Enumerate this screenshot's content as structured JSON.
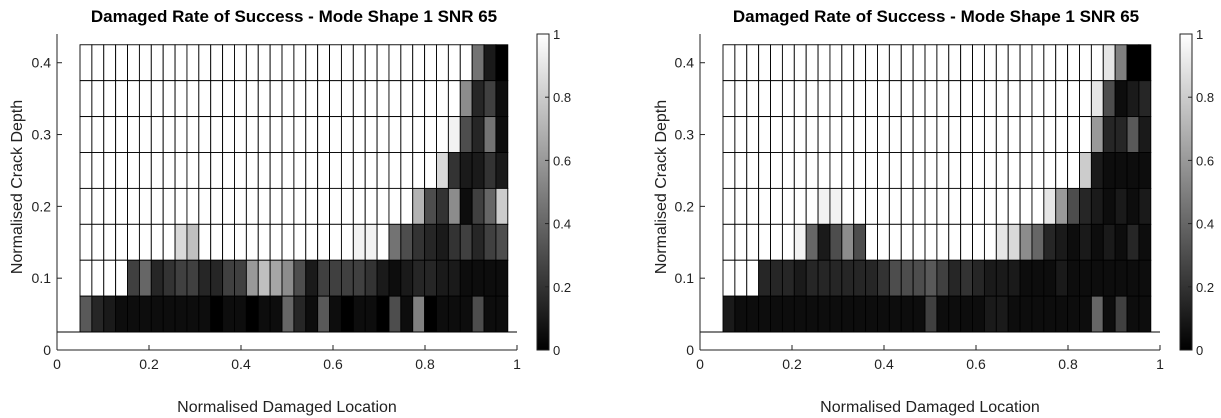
{
  "chart_data": [
    {
      "type": "heatmap",
      "title": "Damaged Rate of Success - Mode Shape 1 SNR 65",
      "xlabel": "Normalised Damaged Location",
      "ylabel": "Normalised Crack Depth",
      "xlim": [
        0,
        1
      ],
      "ylim": [
        0,
        0.44
      ],
      "xticks": [
        "0",
        "0.2",
        "0.4",
        "0.6",
        "0.8",
        "1"
      ],
      "yticks": [
        "0",
        "0.1",
        "0.2",
        "0.3",
        "0.4"
      ],
      "colorbar": {
        "min": 0,
        "max": 1,
        "ticks": [
          "0",
          "0.2",
          "0.4",
          "0.6",
          "0.8",
          "1"
        ]
      },
      "colormap": "gray",
      "x_edges": [
        0.05,
        0.98
      ],
      "y_edges": [
        0.025,
        0.075,
        0.125,
        0.175,
        0.225,
        0.275,
        0.325,
        0.375,
        0.425
      ],
      "rows_top_to_bottom": [
        [
          1,
          1,
          1,
          1,
          1,
          1,
          1,
          1,
          1,
          1,
          1,
          1,
          1,
          1,
          1,
          1,
          1,
          1,
          1,
          1,
          1,
          1,
          1,
          1,
          1,
          1,
          1,
          1,
          1,
          1,
          1,
          1,
          1,
          0.45,
          0.1,
          0
        ],
        [
          1,
          1,
          1,
          1,
          1,
          1,
          1,
          1,
          1,
          1,
          1,
          1,
          1,
          1,
          1,
          1,
          1,
          1,
          1,
          1,
          1,
          1,
          1,
          1,
          1,
          1,
          1,
          1,
          1,
          1,
          1,
          1,
          0.55,
          0.15,
          0.25,
          0.05
        ],
        [
          1,
          1,
          1,
          1,
          1,
          1,
          1,
          1,
          1,
          1,
          1,
          1,
          1,
          1,
          1,
          1,
          1,
          1,
          1,
          1,
          1,
          1,
          1,
          1,
          1,
          1,
          1,
          1,
          1,
          1,
          1,
          0.95,
          0.3,
          0.15,
          0.45,
          0.05
        ],
        [
          1,
          1,
          1,
          1,
          1,
          1,
          1,
          1,
          1,
          1,
          1,
          1,
          1,
          1,
          1,
          1,
          1,
          1,
          1,
          1,
          1,
          1,
          1,
          1,
          1,
          1,
          1,
          1,
          1,
          1,
          0.85,
          0.2,
          0.1,
          0.1,
          0.2,
          0.1
        ],
        [
          1,
          1,
          1,
          1,
          1,
          1,
          1,
          1,
          1,
          1,
          1,
          1,
          1,
          1,
          1,
          1,
          1,
          1,
          1,
          1,
          1,
          1,
          1,
          1,
          1,
          1,
          1,
          1,
          0.7,
          0.3,
          0.2,
          0.55,
          0.05,
          0.25,
          0.4,
          0.8
        ],
        [
          1,
          1,
          1,
          1,
          1,
          1,
          1,
          1,
          0.85,
          0.75,
          1,
          1,
          1,
          1,
          1,
          1,
          1,
          1,
          1,
          1,
          1,
          1,
          1,
          0.95,
          0.95,
          1,
          0.45,
          0.3,
          0.2,
          0.15,
          0.1,
          0.2,
          0.25,
          0.15,
          0.25,
          0.3
        ],
        [
          1,
          1,
          1,
          1,
          0.25,
          0.4,
          0.15,
          0.2,
          0.25,
          0.25,
          0.15,
          0.15,
          0.25,
          0.25,
          0.6,
          0.75,
          0.65,
          0.55,
          0.3,
          0.1,
          0.25,
          0.25,
          0.25,
          0.25,
          0.2,
          0.1,
          0.05,
          0.1,
          0.15,
          0.15,
          0.1,
          0.1,
          0.05,
          0.05,
          0.05,
          0.05
        ],
        [
          0.35,
          0.15,
          0.1,
          0.05,
          0.05,
          0.05,
          0.05,
          0.05,
          0.05,
          0.05,
          0.05,
          0,
          0.05,
          0.05,
          0,
          0.05,
          0.05,
          0.4,
          0.15,
          0.05,
          0.35,
          0.05,
          0,
          0.05,
          0.05,
          0,
          0.3,
          0.05,
          0.5,
          0,
          0.05,
          0.05,
          0.05,
          0.3,
          0.05,
          0.05
        ]
      ]
    },
    {
      "type": "heatmap",
      "title": "Damaged Rate of Success - Mode Shape 1 SNR 65",
      "xlabel": "Normalised Damaged Location",
      "ylabel": "Normalised Crack Depth",
      "xlim": [
        0,
        1
      ],
      "ylim": [
        0,
        0.44
      ],
      "xticks": [
        "0",
        "0.2",
        "0.4",
        "0.6",
        "0.8",
        "1"
      ],
      "yticks": [
        "0",
        "0.1",
        "0.2",
        "0.3",
        "0.4"
      ],
      "colorbar": {
        "min": 0,
        "max": 1,
        "ticks": [
          "0",
          "0.2",
          "0.4",
          "0.6",
          "0.8",
          "1"
        ]
      },
      "colormap": "gray",
      "x_edges": [
        0.05,
        0.98
      ],
      "y_edges": [
        0.025,
        0.075,
        0.125,
        0.175,
        0.225,
        0.275,
        0.325,
        0.375,
        0.425
      ],
      "rows_top_to_bottom": [
        [
          1,
          1,
          1,
          1,
          1,
          1,
          1,
          1,
          1,
          1,
          1,
          1,
          1,
          1,
          1,
          1,
          1,
          1,
          1,
          1,
          1,
          1,
          1,
          1,
          1,
          1,
          1,
          1,
          1,
          1,
          1,
          1,
          0.9,
          0.5,
          0,
          0
        ],
        [
          1,
          1,
          1,
          1,
          1,
          1,
          1,
          1,
          1,
          1,
          1,
          1,
          1,
          1,
          1,
          1,
          1,
          1,
          1,
          1,
          1,
          1,
          1,
          1,
          1,
          1,
          1,
          1,
          1,
          1,
          1,
          0.9,
          0.3,
          0.05,
          0.1,
          0.15
        ],
        [
          1,
          1,
          1,
          1,
          1,
          1,
          1,
          1,
          1,
          1,
          1,
          1,
          1,
          1,
          1,
          1,
          1,
          1,
          1,
          1,
          1,
          1,
          1,
          1,
          1,
          1,
          1,
          1,
          1,
          1,
          1,
          0.6,
          0.15,
          0.15,
          0.35,
          0.1
        ],
        [
          1,
          1,
          1,
          1,
          1,
          1,
          1,
          1,
          1,
          1,
          1,
          1,
          1,
          1,
          1,
          1,
          1,
          1,
          1,
          1,
          1,
          1,
          1,
          1,
          1,
          1,
          1,
          1,
          1,
          1,
          0.8,
          0.1,
          0.05,
          0.05,
          0.05,
          0.05
        ],
        [
          1,
          1,
          1,
          1,
          1,
          1,
          1,
          1,
          0.95,
          0.95,
          1,
          1,
          1,
          1,
          1,
          1,
          1,
          1,
          1,
          1,
          1,
          1,
          1,
          1,
          1,
          1,
          1,
          0.9,
          0.6,
          0.3,
          0.15,
          0.1,
          0.05,
          0.1,
          0.05,
          0.1
        ],
        [
          1,
          1,
          1,
          1,
          1,
          1,
          0.95,
          0.4,
          0.1,
          0.3,
          0.55,
          0.3,
          1,
          1,
          1,
          1,
          1,
          1,
          1,
          1,
          1,
          1,
          1,
          0.9,
          0.85,
          0.55,
          0.4,
          0.15,
          0.1,
          0.05,
          0.1,
          0.05,
          0.1,
          0.05,
          0.15,
          0.05
        ],
        [
          1,
          1,
          1,
          0.15,
          0.15,
          0.15,
          0.1,
          0.15,
          0.15,
          0.15,
          0.15,
          0.15,
          0.15,
          0.2,
          0.3,
          0.3,
          0.3,
          0.35,
          0.25,
          0.15,
          0.2,
          0.15,
          0.1,
          0.1,
          0.1,
          0.05,
          0.05,
          0.05,
          0.1,
          0.05,
          0.05,
          0.05,
          0.05,
          0.05,
          0.05,
          0.05
        ],
        [
          0.1,
          0.05,
          0.05,
          0.05,
          0.05,
          0.05,
          0.05,
          0.05,
          0.05,
          0.05,
          0.05,
          0.05,
          0.05,
          0.05,
          0.05,
          0.05,
          0.05,
          0.25,
          0.05,
          0.05,
          0.05,
          0.05,
          0.1,
          0.1,
          0.05,
          0.05,
          0.05,
          0.05,
          0.05,
          0.05,
          0.05,
          0.4,
          0.05,
          0.25,
          0.05,
          0.05
        ]
      ]
    }
  ]
}
